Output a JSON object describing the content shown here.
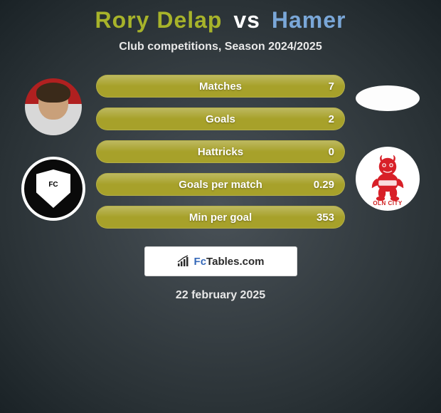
{
  "title": {
    "player1": "Rory Delap",
    "vs": "vs",
    "player2": "Hamer",
    "player1_color": "#a7b32a",
    "vs_color": "#ffffff",
    "player2_color": "#7aa7d8"
  },
  "subtitle": "Club competitions, Season 2024/2025",
  "stats": [
    {
      "label": "Matches",
      "value_left": "",
      "value_right": "7",
      "bg": "#a7a12a"
    },
    {
      "label": "Goals",
      "value_left": "",
      "value_right": "2",
      "bg": "#a7a12a"
    },
    {
      "label": "Hattricks",
      "value_left": "",
      "value_right": "0",
      "bg": "#a7a12a"
    },
    {
      "label": "Goals per match",
      "value_left": "",
      "value_right": "0.29",
      "bg": "#a7a12a"
    },
    {
      "label": "Min per goal",
      "value_left": "",
      "value_right": "353",
      "bg": "#a7a12a"
    }
  ],
  "club_right_text": "OLN CITY",
  "footer": {
    "brand_prefix": "Fc",
    "brand_suffix": "Tables.com",
    "icon_color": "#2a2a2a",
    "prefix_color": "#3568b8",
    "suffix_color": "#2a2a2a"
  },
  "date": "22 february 2025"
}
